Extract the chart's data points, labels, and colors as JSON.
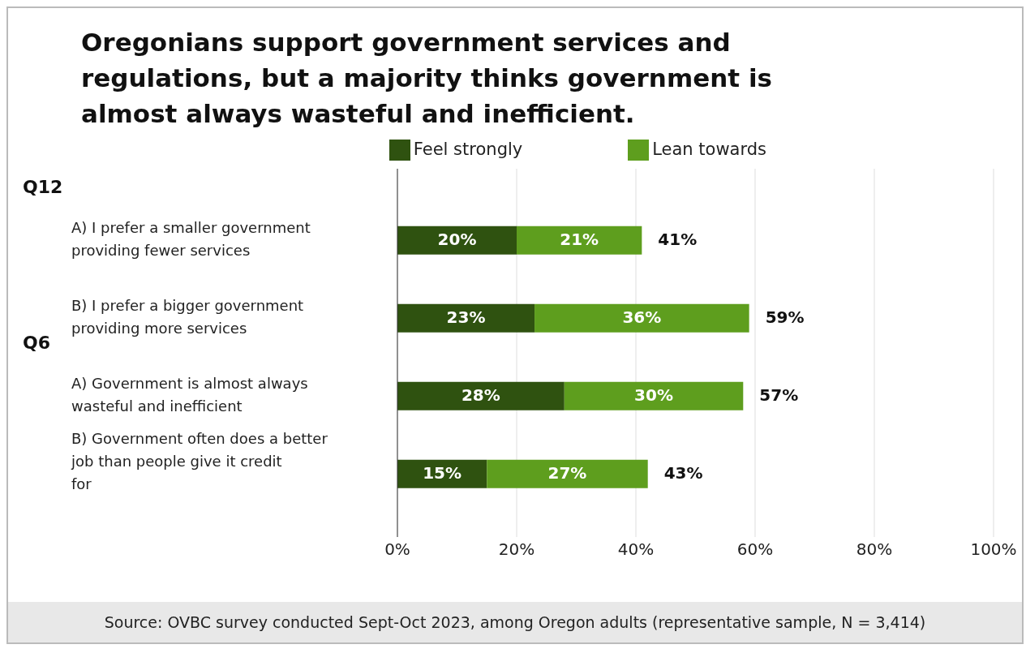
{
  "chart_data": {
    "type": "bar",
    "orientation": "horizontal",
    "stacked": true,
    "title": "Oregonians support government services and regulations, but a majority thinks government is almost always wasteful and inefficient.",
    "categories": [
      "A) I prefer a smaller government providing fewer services",
      "B) I prefer a bigger government providing more services",
      "A) Government is almost always wasteful and inefficient",
      "B) Government often does a better job than people give it credit for"
    ],
    "series": [
      {
        "name": "Feel strongly",
        "color": "#2f5210",
        "values": [
          20,
          23,
          28,
          15
        ],
        "value_labels": [
          "20%",
          "23%",
          "28%",
          "15%"
        ]
      },
      {
        "name": "Lean towards",
        "color": "#5e9e1e",
        "values": [
          21,
          36,
          30,
          27
        ],
        "value_labels": [
          "21%",
          "36%",
          "30%",
          "27%"
        ]
      }
    ],
    "totals": [
      "41%",
      "59%",
      "57%",
      "43%"
    ],
    "xlim": [
      0,
      100
    ],
    "xticks": [
      {
        "value": 0,
        "label": "0%"
      },
      {
        "value": 20,
        "label": "20%"
      },
      {
        "value": 40,
        "label": "40%"
      },
      {
        "value": 60,
        "label": "60%"
      },
      {
        "value": 80,
        "label": "80%"
      },
      {
        "value": 100,
        "label": "100%"
      }
    ],
    "grid": "x",
    "legend": "top",
    "annotations": [
      "Q12",
      "Q6",
      "Source: OVBC survey conducted Sept-Oct 2023, among Oregon adults (representative sample, N = 3,414)"
    ]
  }
}
